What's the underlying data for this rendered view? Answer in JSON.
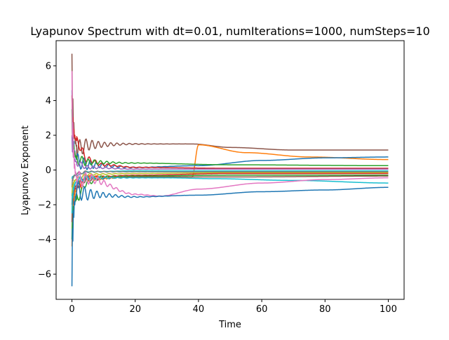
{
  "chart_data": {
    "type": "line",
    "title": "Lyapunov Spectrum with  dt=0.01, numIterations=1000, numSteps=10",
    "xlabel": "Time",
    "ylabel": "Lyapunov Exponent",
    "xlim": [
      -5,
      105
    ],
    "ylim": [
      -7.45,
      7.45
    ],
    "xticks": [
      0,
      20,
      40,
      60,
      80,
      100
    ],
    "yticks": [
      -6,
      -4,
      -2,
      0,
      2,
      4,
      6
    ],
    "grid": false,
    "legend": "none",
    "series": [
      {
        "color": "#8c564b",
        "start": 6.7,
        "points": [
          [
            1.5,
            1.2
          ],
          [
            5,
            1.45
          ],
          [
            20,
            1.5
          ],
          [
            38,
            1.5
          ],
          [
            50,
            1.3
          ],
          [
            70,
            1.15
          ],
          [
            100,
            1.15
          ]
        ]
      },
      {
        "color": "#ff7f0e",
        "start": -4.4,
        "points": [
          [
            1.5,
            -1.0
          ],
          [
            5,
            -0.45
          ],
          [
            20,
            -0.4
          ],
          [
            38,
            -0.4
          ],
          [
            40,
            1.45
          ],
          [
            55,
            1.0
          ],
          [
            75,
            0.75
          ],
          [
            100,
            0.6
          ]
        ]
      },
      {
        "color": "#1f77b4",
        "start": 4.6,
        "points": [
          [
            1.5,
            0.5
          ],
          [
            5,
            0.3
          ],
          [
            20,
            0.15
          ],
          [
            40,
            0.25
          ],
          [
            60,
            0.55
          ],
          [
            80,
            0.7
          ],
          [
            100,
            0.75
          ]
        ]
      },
      {
        "color": "#d62728",
        "start": 4.3,
        "points": [
          [
            1.5,
            1.6
          ],
          [
            5,
            0.6
          ],
          [
            10,
            0.3
          ],
          [
            20,
            0.15
          ],
          [
            50,
            0.1
          ],
          [
            100,
            0.1
          ]
        ]
      },
      {
        "color": "#2ca02c",
        "start": 3.5,
        "points": [
          [
            1.5,
            0.6
          ],
          [
            5,
            0.45
          ],
          [
            20,
            0.4
          ],
          [
            50,
            0.3
          ],
          [
            100,
            0.25
          ]
        ]
      },
      {
        "color": "#9467bd",
        "start": 2.0,
        "points": [
          [
            1.5,
            0.4
          ],
          [
            5,
            0.15
          ],
          [
            20,
            0.05
          ],
          [
            50,
            0.05
          ],
          [
            100,
            0.05
          ]
        ]
      },
      {
        "color": "#17becf",
        "start": -0.5,
        "points": [
          [
            1.5,
            -0.3
          ],
          [
            5,
            -0.1
          ],
          [
            20,
            -0.05
          ],
          [
            50,
            -0.05
          ],
          [
            100,
            -0.05
          ]
        ]
      },
      {
        "color": "#7f7f7f",
        "start": -1.0,
        "points": [
          [
            1.5,
            -0.2
          ],
          [
            5,
            -0.1
          ],
          [
            20,
            -0.1
          ],
          [
            50,
            -0.1
          ],
          [
            100,
            -0.1
          ]
        ]
      },
      {
        "color": "#bcbd22",
        "start": -1.5,
        "points": [
          [
            1.5,
            -0.5
          ],
          [
            5,
            -0.25
          ],
          [
            20,
            -0.2
          ],
          [
            50,
            -0.15
          ],
          [
            100,
            -0.15
          ]
        ]
      },
      {
        "color": "#d62728",
        "start": -2.0,
        "points": [
          [
            1.5,
            -1.0
          ],
          [
            5,
            -0.4
          ],
          [
            20,
            -0.3
          ],
          [
            50,
            -0.2
          ],
          [
            100,
            -0.2
          ]
        ]
      },
      {
        "color": "#2ca02c",
        "start": -4.0,
        "points": [
          [
            1.5,
            -1.6
          ],
          [
            5,
            -0.7
          ],
          [
            10,
            -0.4
          ],
          [
            20,
            -0.35
          ],
          [
            50,
            -0.3
          ],
          [
            100,
            -0.3
          ]
        ]
      },
      {
        "color": "#8c564b",
        "start": -3.0,
        "points": [
          [
            1.5,
            -0.8
          ],
          [
            5,
            -0.5
          ],
          [
            20,
            -0.4
          ],
          [
            50,
            -0.4
          ],
          [
            100,
            -0.35
          ]
        ]
      },
      {
        "color": "#17becf",
        "start": -2.5,
        "points": [
          [
            1.5,
            -0.6
          ],
          [
            5,
            -0.45
          ],
          [
            30,
            -0.45
          ],
          [
            45,
            -0.5
          ],
          [
            70,
            -0.6
          ],
          [
            100,
            -0.75
          ]
        ]
      },
      {
        "color": "#e377c2",
        "start": 5.7,
        "points": [
          [
            1.5,
            -0.6
          ],
          [
            5,
            -0.5
          ],
          [
            20,
            -1.4
          ],
          [
            28,
            -1.5
          ],
          [
            40,
            -1.1
          ],
          [
            60,
            -0.75
          ],
          [
            80,
            -0.55
          ],
          [
            100,
            -0.45
          ]
        ]
      },
      {
        "color": "#1f77b4",
        "start": -6.7,
        "points": [
          [
            1.5,
            -1.2
          ],
          [
            5,
            -1.4
          ],
          [
            20,
            -1.55
          ],
          [
            40,
            -1.45
          ],
          [
            60,
            -1.25
          ],
          [
            80,
            -1.15
          ],
          [
            100,
            -1.0
          ]
        ]
      }
    ]
  }
}
